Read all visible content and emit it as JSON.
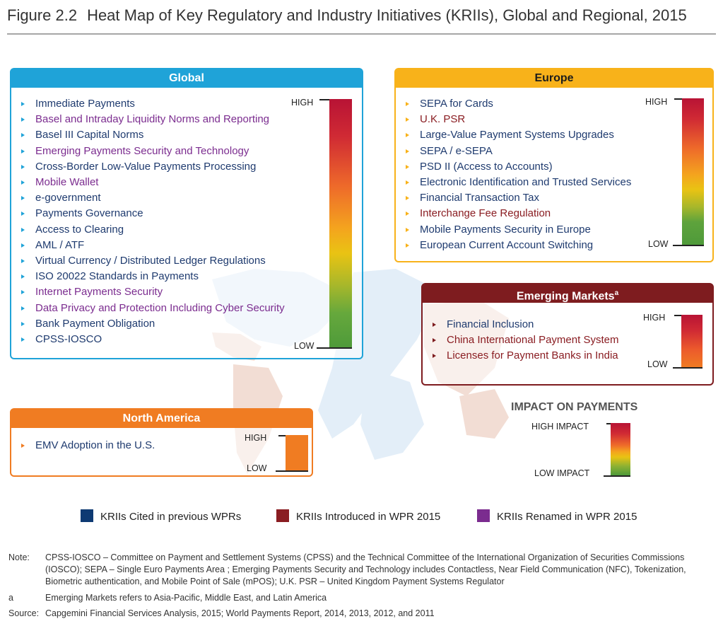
{
  "figure": {
    "number": "Figure 2.2",
    "title": "Heat Map of Key Regulatory and Industry Initiatives (KRIIs), Global and Regional, 2015"
  },
  "colors": {
    "global": "#1fa3d8",
    "europe": "#f8b21a",
    "emerging": "#7e1c1f",
    "north_america": "#f07c22",
    "cited_previous": "#0e3a73",
    "introduced_2015": "#8a1d22",
    "renamed_2015": "#7b2c8f"
  },
  "panels": {
    "global": {
      "title": "Global",
      "scale_high": "HIGH",
      "scale_low": "LOW",
      "items": [
        {
          "text": "Immediate Payments",
          "status": "prev"
        },
        {
          "text": "Basel and Intraday Liquidity Norms and Reporting",
          "status": "ren"
        },
        {
          "text": "Basel III Capital Norms",
          "status": "prev"
        },
        {
          "text": "Emerging Payments Security and Technology",
          "status": "ren"
        },
        {
          "text": "Cross-Border Low-Value Payments Processing",
          "status": "prev"
        },
        {
          "text": "Mobile Wallet",
          "status": "ren"
        },
        {
          "text": "e-government",
          "status": "prev"
        },
        {
          "text": "Payments Governance",
          "status": "prev"
        },
        {
          "text": "Access to Clearing",
          "status": "prev"
        },
        {
          "text": "AML / ATF",
          "status": "prev"
        },
        {
          "text": "Virtual Currency / Distributed Ledger Regulations",
          "status": "prev"
        },
        {
          "text": "ISO 20022 Standards in Payments",
          "status": "prev"
        },
        {
          "text": "Internet Payments Security",
          "status": "ren"
        },
        {
          "text": "Data Privacy and Protection Including Cyber Security",
          "status": "ren"
        },
        {
          "text": "Bank Payment Obligation",
          "status": "prev"
        },
        {
          "text": "CPSS-IOSCO",
          "status": "prev"
        }
      ]
    },
    "europe": {
      "title": "Europe",
      "scale_high": "HIGH",
      "scale_low": "LOW",
      "items": [
        {
          "text": "SEPA for Cards",
          "status": "prev"
        },
        {
          "text": "U.K. PSR",
          "status": "new"
        },
        {
          "text": "Large-Value Payment Systems Upgrades",
          "status": "prev"
        },
        {
          "text": "SEPA / e-SEPA",
          "status": "prev"
        },
        {
          "text": "PSD II (Access to Accounts)",
          "status": "prev"
        },
        {
          "text": "Electronic Identification and Trusted Services",
          "status": "prev"
        },
        {
          "text": "Financial Transaction Tax",
          "status": "prev"
        },
        {
          "text": "Interchange Fee Regulation",
          "status": "new"
        },
        {
          "text": "Mobile Payments Security in Europe",
          "status": "prev"
        },
        {
          "text": "European Current Account Switching",
          "status": "prev"
        }
      ]
    },
    "emerging": {
      "title": "Emerging Markets",
      "title_sup": "a",
      "scale_high": "HIGH",
      "scale_low": "LOW",
      "items": [
        {
          "text": "Financial Inclusion",
          "status": "prev"
        },
        {
          "text": "China International Payment System",
          "status": "new"
        },
        {
          "text": "Licenses for Payment Banks in India",
          "status": "new"
        }
      ]
    },
    "north_america": {
      "title": "North America",
      "scale_high": "HIGH",
      "scale_low": "LOW",
      "items": [
        {
          "text": "EMV Adoption in the U.S.",
          "status": "prev"
        }
      ]
    }
  },
  "impact_key": {
    "title": "IMPACT ON PAYMENTS",
    "high": "HIGH IMPACT",
    "low": "LOW IMPACT"
  },
  "legend": {
    "cited_previous": "KRIIs Cited in previous WPRs",
    "introduced_2015": "KRIIs Introduced in WPR 2015",
    "renamed_2015": "KRIIs Renamed in WPR 2015"
  },
  "notes": {
    "note_key": "Note:",
    "note_text": "CPSS-IOSCO – Committee on Payment and Settlement Systems (CPSS) and the Technical Committee of the International Organization of Securities Commissions (IOSCO); SEPA – Single Euro Payments Area ; Emerging Payments Security and Technology includes Contactless, Near Field Communication (NFC), Tokenization, Biometric authentication, and Mobile Point of Sale (mPOS); U.K. PSR – United Kingdom Payment Systems Regulator",
    "a_key": "a",
    "a_text": "Emerging Markets refers to Asia-Pacific, Middle East, and Latin America",
    "source_key": "Source:",
    "source_text": "Capgemini Financial Services Analysis, 2015; World Payments Report, 2014, 2013, 2012, and 2011"
  }
}
